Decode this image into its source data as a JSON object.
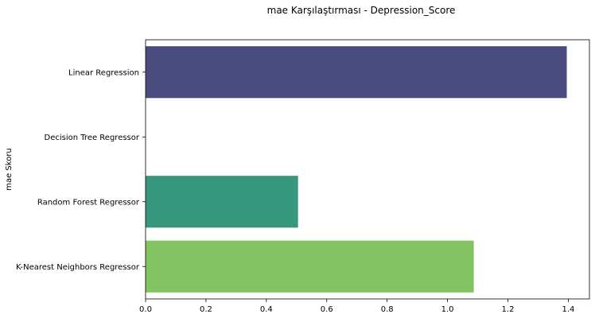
{
  "chart_data": {
    "type": "bar",
    "orientation": "horizontal",
    "title": "mae Karşılaştırması - Depression_Score",
    "xlabel": "",
    "ylabel": "mae Skoru",
    "categories": [
      "Linear Regression",
      "Decision Tree Regressor",
      "Random Forest Regressor",
      "K-Nearest Neighbors Regressor"
    ],
    "values": [
      1.395,
      0.0,
      0.505,
      1.087
    ],
    "colors": [
      "#4a4c80",
      "#ffffff",
      "#35987c",
      "#82c462"
    ],
    "xlim": [
      0,
      1.47
    ],
    "xticks": [
      0,
      0.2,
      0.4,
      0.6,
      0.8,
      1.0,
      1.2,
      1.4
    ],
    "xtick_labels": [
      "0.0",
      "0.2",
      "0.4",
      "0.6",
      "0.8",
      "1.0",
      "1.2",
      "1.4"
    ],
    "grid": false,
    "legend": "none"
  }
}
